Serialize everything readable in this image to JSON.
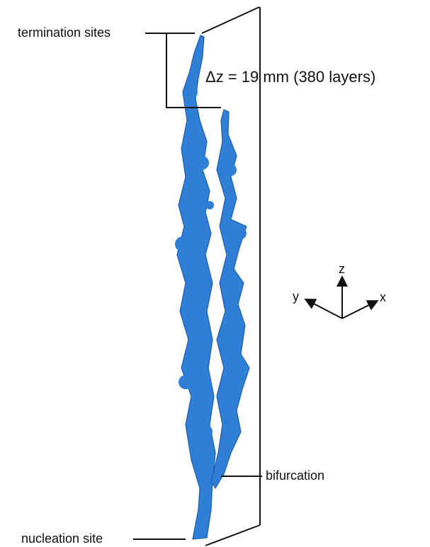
{
  "labels": {
    "termination": "termination sites",
    "height": "Δz = 19 mm (380 layers)",
    "bifurcation": "bifurcation",
    "nucleation": "nucleation site"
  },
  "axes": {
    "z": "z",
    "y": "y",
    "x": "x"
  }
}
